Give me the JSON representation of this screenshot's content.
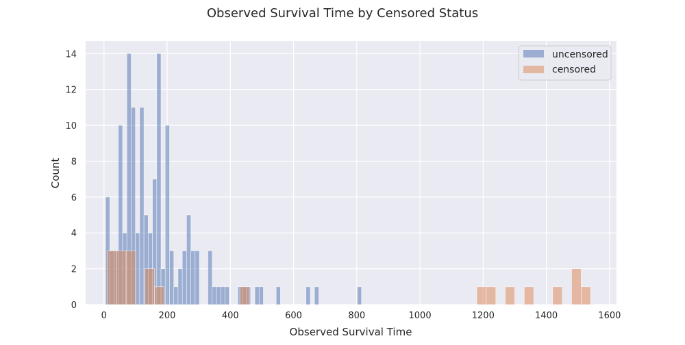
{
  "colors": {
    "plot_bg": "#eaeaf2",
    "grid": "#ffffff",
    "uncensored": "#4c72b0",
    "censored": "#dd8452",
    "text": "#262626"
  },
  "chart_data": {
    "type": "bar",
    "title": "Observed Survival Time by Censored Status",
    "xlabel": "Observed Survival Time",
    "ylabel": "Count",
    "xlim": [
      -58,
      1622
    ],
    "ylim": [
      0,
      14.7
    ],
    "grid": true,
    "legend_position": "top-right",
    "xticks": [
      0,
      200,
      400,
      600,
      800,
      1000,
      1200,
      1400,
      1600
    ],
    "yticks": [
      0,
      2,
      4,
      6,
      8,
      10,
      12,
      14
    ],
    "bar_alpha": 0.5,
    "series": [
      {
        "name": "uncensored",
        "bin_width": 13.5,
        "bins": [
          {
            "x": 5,
            "y": 6
          },
          {
            "x": 18.5,
            "y": 3
          },
          {
            "x": 32,
            "y": 3
          },
          {
            "x": 45.5,
            "y": 10
          },
          {
            "x": 59,
            "y": 4
          },
          {
            "x": 72.5,
            "y": 14
          },
          {
            "x": 86,
            "y": 11
          },
          {
            "x": 99.5,
            "y": 4
          },
          {
            "x": 113,
            "y": 11
          },
          {
            "x": 126.5,
            "y": 5
          },
          {
            "x": 140,
            "y": 4
          },
          {
            "x": 153.5,
            "y": 7
          },
          {
            "x": 167,
            "y": 14
          },
          {
            "x": 180.5,
            "y": 2
          },
          {
            "x": 194,
            "y": 10
          },
          {
            "x": 207.5,
            "y": 3
          },
          {
            "x": 221,
            "y": 1
          },
          {
            "x": 234.5,
            "y": 2
          },
          {
            "x": 248,
            "y": 3
          },
          {
            "x": 261.5,
            "y": 5
          },
          {
            "x": 275,
            "y": 3
          },
          {
            "x": 288.5,
            "y": 3
          },
          {
            "x": 329,
            "y": 3
          },
          {
            "x": 342.5,
            "y": 1
          },
          {
            "x": 356,
            "y": 1
          },
          {
            "x": 369.5,
            "y": 1
          },
          {
            "x": 383,
            "y": 1
          },
          {
            "x": 423.5,
            "y": 1
          },
          {
            "x": 437,
            "y": 1
          },
          {
            "x": 450.5,
            "y": 1
          },
          {
            "x": 477.5,
            "y": 1
          },
          {
            "x": 491,
            "y": 1
          },
          {
            "x": 545,
            "y": 1
          },
          {
            "x": 639.5,
            "y": 1
          },
          {
            "x": 666.5,
            "y": 1
          },
          {
            "x": 801.5,
            "y": 1
          }
        ]
      },
      {
        "name": "censored",
        "bin_width": 30,
        "bins": [
          {
            "x": 10,
            "y": 3
          },
          {
            "x": 40,
            "y": 3
          },
          {
            "x": 70,
            "y": 3
          },
          {
            "x": 130,
            "y": 2
          },
          {
            "x": 160,
            "y": 1
          },
          {
            "x": 430,
            "y": 1
          },
          {
            "x": 1180,
            "y": 1
          },
          {
            "x": 1210,
            "y": 1
          },
          {
            "x": 1270,
            "y": 1
          },
          {
            "x": 1330,
            "y": 1
          },
          {
            "x": 1420,
            "y": 1
          },
          {
            "x": 1480,
            "y": 2
          },
          {
            "x": 1510,
            "y": 1
          }
        ]
      }
    ]
  }
}
